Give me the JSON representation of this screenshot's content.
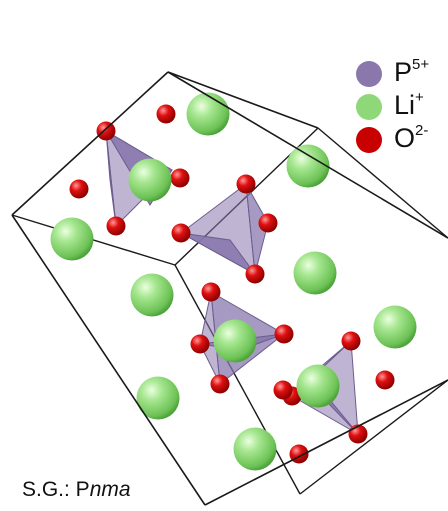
{
  "legend": {
    "items": [
      {
        "element": "P",
        "charge": "5+",
        "color": "#8a78ad"
      },
      {
        "element": "Li",
        "charge": "+",
        "color": "#8ed87a"
      },
      {
        "element": "O",
        "charge": "2-",
        "color": "#c80000"
      }
    ]
  },
  "caption": {
    "prefix": "S.G.: P",
    "italic": "nma"
  },
  "colors": {
    "cell_edge": "#1a1a1a",
    "phosphate_tetrahedron": "#8a78ad",
    "lithium": "#8ed87a",
    "oxygen": "#c80000"
  }
}
